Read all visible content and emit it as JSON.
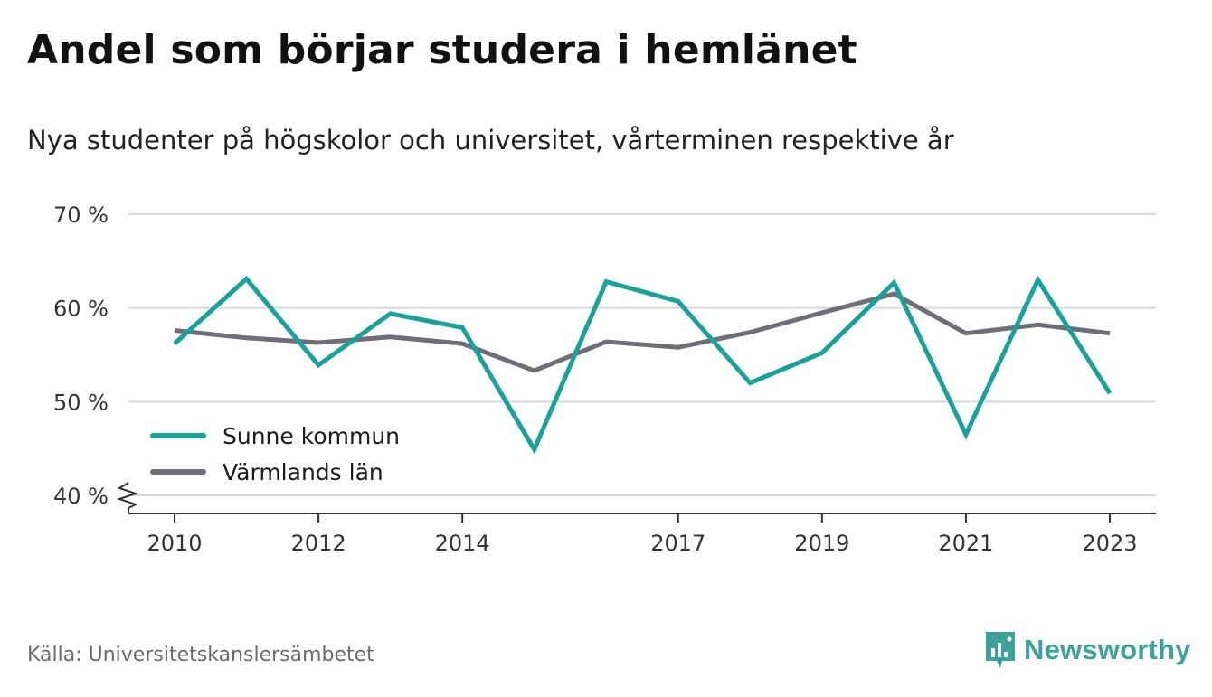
{
  "header": {
    "title": "Andel som börjar studera i hemlänet",
    "subtitle": "Nya studenter på högskolor och universitet, vårterminen respektive år"
  },
  "footer": {
    "source": "Källa: Universitetskanslersämbetet",
    "brand": "Newsworthy"
  },
  "colors": {
    "sunne": "#16a39a",
    "varmland": "#706d76",
    "grid": "#d9d9d9",
    "axis": "#333333",
    "brand": "#3aa39a"
  },
  "chart_data": {
    "type": "line",
    "x": [
      2010,
      2011,
      2012,
      2013,
      2014,
      2015,
      2016,
      2017,
      2018,
      2019,
      2020,
      2021,
      2022,
      2023
    ],
    "x_tick_labels": [
      "2010",
      "2012",
      "2014",
      "2017",
      "2019",
      "2021",
      "2023"
    ],
    "x_ticks": [
      2010,
      2012,
      2014,
      2017,
      2019,
      2021,
      2023
    ],
    "y_ticks": [
      40,
      50,
      60,
      70
    ],
    "y_tick_labels": [
      "40 %",
      "50 %",
      "60 %",
      "70 %"
    ],
    "ylim": [
      40,
      70
    ],
    "y_axis_break": true,
    "grid": true,
    "legend_position": "bottom-left",
    "series": [
      {
        "name": "Sunne kommun",
        "values": [
          56.2,
          63.1,
          53.9,
          59.4,
          57.9,
          44.9,
          62.8,
          60.7,
          52.0,
          55.2,
          62.7,
          46.5,
          63.0,
          50.9
        ]
      },
      {
        "name": "Värmlands län",
        "values": [
          57.6,
          56.8,
          56.3,
          56.9,
          56.2,
          53.3,
          56.4,
          55.8,
          57.4,
          59.5,
          61.5,
          57.3,
          58.2,
          57.3
        ]
      }
    ]
  }
}
